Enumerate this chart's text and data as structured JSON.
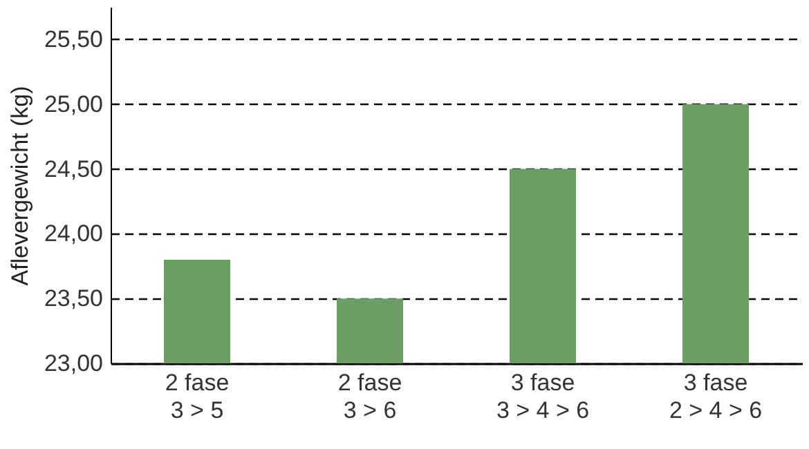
{
  "chart_data": {
    "type": "bar",
    "ylabel": "Aflevergewicht (kg)",
    "categories": [
      "2 fase\n3 > 5",
      "2 fase\n3 > 6",
      "3 fase\n3 > 4 > 6",
      "3 fase\n2 > 4 > 6"
    ],
    "values": [
      23.8,
      23.5,
      24.5,
      25.0
    ],
    "color": "#6b9e64",
    "ylim": [
      23,
      25.75
    ],
    "yticks": [
      {
        "value": 23,
        "label": "23,00"
      },
      {
        "value": 23.5,
        "label": "23,50"
      },
      {
        "value": 24,
        "label": "24,00"
      },
      {
        "value": 24.5,
        "label": "24,50"
      },
      {
        "value": 25,
        "label": "25,00"
      },
      {
        "value": 25.5,
        "label": "25,50"
      }
    ],
    "grid": "y"
  }
}
